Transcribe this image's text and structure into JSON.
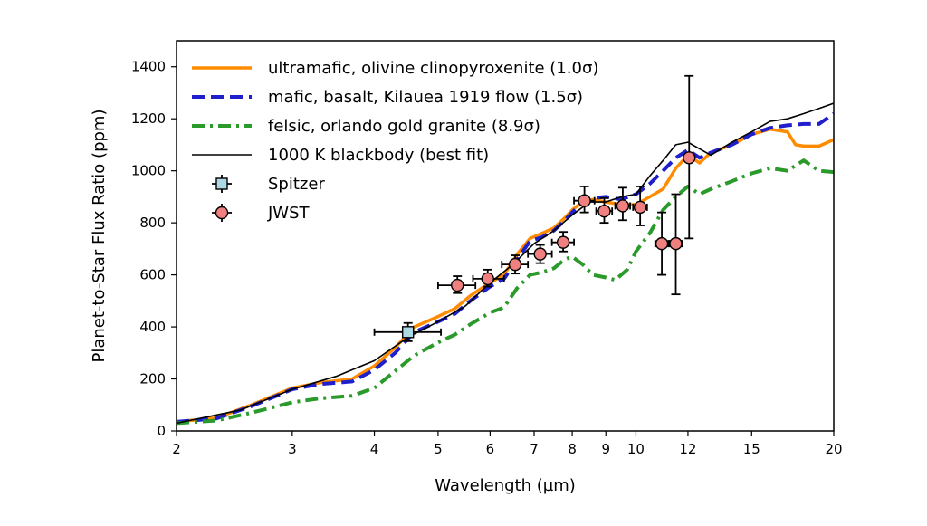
{
  "chart_data": {
    "type": "line",
    "xlabel": "Wavelength (µm)",
    "ylabel": "Planet-to-Star Flux Ratio (ppm)",
    "xscale": "log",
    "xlim": [
      2,
      20
    ],
    "ylim": [
      0,
      1500
    ],
    "xticks": [
      2,
      3,
      4,
      5,
      6,
      7,
      8,
      9,
      10,
      12,
      15,
      20
    ],
    "yticks": [
      0,
      200,
      400,
      600,
      800,
      1000,
      1200,
      1400
    ],
    "legend_position": "top-left",
    "series": [
      {
        "name": "ultramafic, olivine clinopyroxenite (1.0σ)",
        "color": "#ff8c00",
        "style": "solid",
        "x": [
          2,
          2.3,
          2.6,
          3,
          3.3,
          3.7,
          4,
          4.3,
          4.6,
          5,
          5.3,
          5.6,
          6,
          6.3,
          6.6,
          6.9,
          7.2,
          7.5,
          7.8,
          8,
          8.3,
          8.6,
          9,
          9.5,
          10,
          10.5,
          11,
          11.5,
          12,
          12.5,
          13,
          14,
          15,
          16,
          17,
          17.5,
          18,
          19,
          20
        ],
        "y": [
          35,
          50,
          100,
          165,
          185,
          200,
          250,
          320,
          400,
          440,
          470,
          520,
          570,
          600,
          680,
          740,
          760,
          780,
          820,
          850,
          880,
          890,
          880,
          870,
          870,
          900,
          930,
          1010,
          1060,
          1030,
          1070,
          1100,
          1140,
          1160,
          1150,
          1100,
          1095,
          1095,
          1120
        ]
      },
      {
        "name": "mafic, basalt, Kilauea 1919 flow (1.5σ)",
        "color": "#1f1fcc",
        "style": "dashed",
        "x": [
          2,
          2.3,
          2.6,
          3,
          3.3,
          3.7,
          4,
          4.3,
          4.6,
          5,
          5.3,
          5.6,
          6,
          6.3,
          6.6,
          6.9,
          7.2,
          7.5,
          7.8,
          8,
          8.3,
          8.6,
          9,
          9.5,
          10,
          10.5,
          11,
          11.5,
          12,
          12.5,
          13,
          14,
          15,
          16,
          17,
          18,
          19,
          20
        ],
        "y": [
          35,
          48,
          95,
          160,
          180,
          190,
          235,
          300,
          380,
          420,
          450,
          500,
          555,
          585,
          660,
          730,
          745,
          770,
          810,
          840,
          880,
          895,
          900,
          890,
          910,
          950,
          1000,
          1050,
          1080,
          1050,
          1070,
          1100,
          1140,
          1165,
          1175,
          1180,
          1180,
          1220
        ]
      },
      {
        "name": "felsic, orlando gold granite (8.9σ)",
        "color": "#2a9a2a",
        "style": "dashdot",
        "x": [
          2,
          2.3,
          2.6,
          3,
          3.3,
          3.7,
          4,
          4.3,
          4.6,
          5,
          5.3,
          5.6,
          6,
          6.3,
          6.6,
          6.9,
          7.2,
          7.5,
          7.8,
          8,
          8.3,
          8.6,
          9,
          9.3,
          9.7,
          10,
          10.5,
          11,
          11.5,
          12,
          12.5,
          13,
          14,
          15,
          16,
          17,
          18,
          19,
          20
        ],
        "y": [
          30,
          40,
          70,
          110,
          125,
          135,
          165,
          230,
          290,
          340,
          370,
          410,
          455,
          475,
          550,
          600,
          610,
          625,
          660,
          670,
          640,
          600,
          590,
          580,
          620,
          690,
          760,
          850,
          900,
          940,
          910,
          930,
          960,
          990,
          1010,
          1000,
          1040,
          1000,
          995
        ]
      },
      {
        "name": "1000 K blackbody (best fit)",
        "color": "#000000",
        "style": "thin",
        "x": [
          2,
          2.5,
          3,
          3.5,
          4,
          4.5,
          5,
          5.5,
          6,
          6.5,
          7,
          7.5,
          8,
          8.5,
          9,
          9.5,
          10,
          10.5,
          11,
          11.5,
          12,
          13,
          14,
          15,
          16,
          17,
          18,
          19,
          20
        ],
        "y": [
          30,
          80,
          160,
          210,
          270,
          360,
          420,
          480,
          570,
          640,
          720,
          770,
          830,
          880,
          880,
          900,
          910,
          980,
          1040,
          1100,
          1110,
          1060,
          1110,
          1150,
          1190,
          1200,
          1220,
          1240,
          1260
        ]
      }
    ],
    "points": [
      {
        "name": "Spitzer",
        "color": "#add8e6",
        "marker": "square",
        "data": [
          {
            "x": 4.5,
            "y": 380,
            "xlo": 4.0,
            "xhi": 5.05,
            "ylo": 345,
            "yhi": 415
          }
        ]
      },
      {
        "name": "JWST",
        "color": "#f08080",
        "marker": "circle",
        "data": [
          {
            "x": 5.35,
            "y": 560,
            "xlo": 5.0,
            "xhi": 5.7,
            "ylo": 530,
            "yhi": 595
          },
          {
            "x": 5.95,
            "y": 585,
            "xlo": 5.65,
            "xhi": 6.3,
            "ylo": 555,
            "yhi": 620
          },
          {
            "x": 6.55,
            "y": 640,
            "xlo": 6.25,
            "xhi": 6.85,
            "ylo": 605,
            "yhi": 675
          },
          {
            "x": 7.15,
            "y": 680,
            "xlo": 6.85,
            "xhi": 7.45,
            "ylo": 645,
            "yhi": 715
          },
          {
            "x": 7.75,
            "y": 725,
            "xlo": 7.45,
            "xhi": 8.05,
            "ylo": 690,
            "yhi": 765
          },
          {
            "x": 8.35,
            "y": 885,
            "xlo": 8.05,
            "xhi": 8.65,
            "ylo": 840,
            "yhi": 940
          },
          {
            "x": 8.95,
            "y": 845,
            "xlo": 8.7,
            "xhi": 9.2,
            "ylo": 800,
            "yhi": 895
          },
          {
            "x": 9.55,
            "y": 865,
            "xlo": 9.3,
            "xhi": 9.8,
            "ylo": 810,
            "yhi": 935
          },
          {
            "x": 10.15,
            "y": 860,
            "xlo": 9.9,
            "xhi": 10.4,
            "ylo": 790,
            "yhi": 940
          },
          {
            "x": 10.95,
            "y": 720,
            "xlo": 10.7,
            "xhi": 11.2,
            "ylo": 600,
            "yhi": 840
          },
          {
            "x": 11.5,
            "y": 720,
            "xlo": 11.25,
            "xhi": 11.75,
            "ylo": 525,
            "yhi": 910
          },
          {
            "x": 12.05,
            "y": 1050,
            "xlo": 11.85,
            "xhi": 12.25,
            "ylo": 740,
            "yhi": 1365
          }
        ]
      }
    ]
  }
}
